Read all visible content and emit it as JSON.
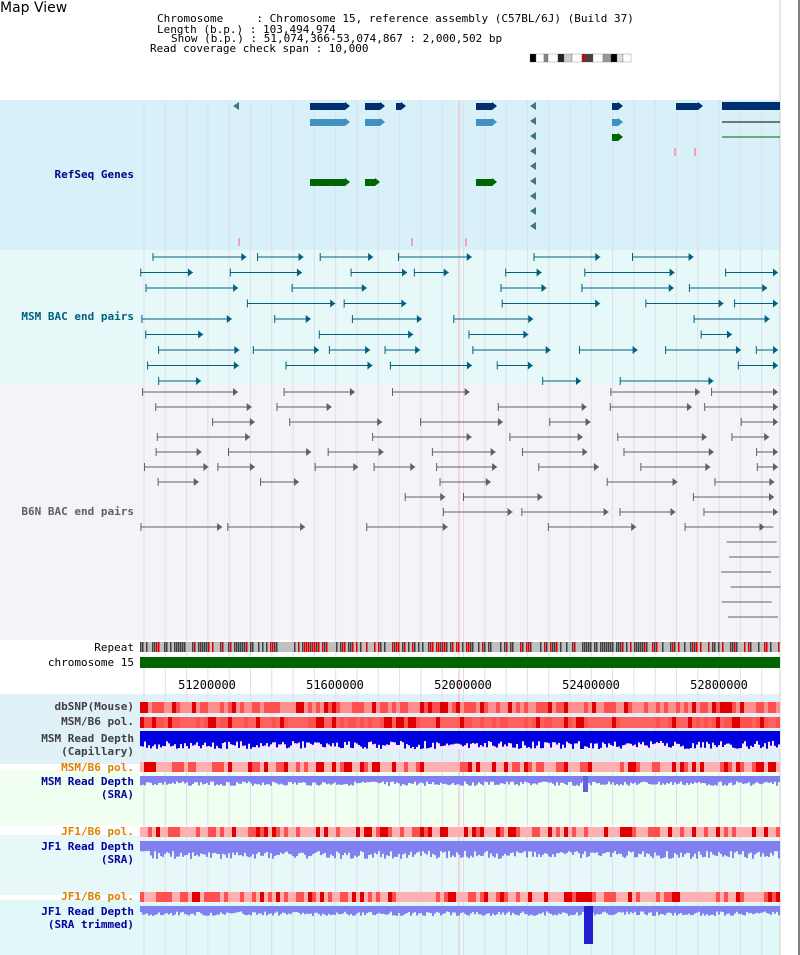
{
  "title": "Map View",
  "info": [
    "Chromosome     : Chromosome 15, reference assembly (C57BL/6J) (Build 37)",
    "Length (b.p.) : 103,494,974",
    "Show (b.p.) : 51,074,366-53,074,867 : 2,000,502 bp",
    "Read coverage check span : 10,000"
  ],
  "tracks": {
    "refseq": {
      "label": "RefSeq Genes",
      "color": "#00008b"
    },
    "msm_bac": {
      "label": "MSM BAC end pairs",
      "color": "#006080"
    },
    "b6n_bac": {
      "label": "B6N BAC end pairs",
      "color": "#606060"
    },
    "repeat": {
      "label": "Repeat"
    },
    "chromosome": {
      "label": "chromosome 15"
    },
    "dbsnp": {
      "label": "dbSNP(Mouse)"
    },
    "msm_b6_pol1": {
      "label": "MSM/B6 pol."
    },
    "msm_depth_cap": {
      "label1": "MSM Read Depth",
      "label2": "(Capillary)"
    },
    "msm_b6_pol2": {
      "label": "MSM/B6 pol.",
      "color": "#e08000"
    },
    "msm_depth_sra": {
      "label1": "MSM Read Depth",
      "label2": "(SRA)",
      "color": "#0000a0"
    },
    "jf1_b6_pol1": {
      "label": "JF1/B6 pol.",
      "color": "#e08000"
    },
    "jf1_depth_sra": {
      "label1": "JF1 Read Depth",
      "label2": "(SRA)",
      "color": "#0000a0"
    },
    "jf1_b6_pol2": {
      "label": "JF1/B6 pol.",
      "color": "#e08000"
    },
    "jf1_depth_trim": {
      "label1": "JF1 Read Depth",
      "label2": "(SRA trimmed)",
      "color": "#0000a0"
    }
  },
  "axis_ticks": [
    "51200000",
    "51600000",
    "52000000",
    "52400000",
    "52800000"
  ],
  "colors": {
    "refseq_bg": "#d8f0f8",
    "msm_bg": "#e6f8f8",
    "b6n_bg": "#f4f4f8",
    "chromosome": "#006400",
    "snp": "#ff6060",
    "depth_cap": "#0000e0",
    "depth_sra": "#8080f0"
  }
}
